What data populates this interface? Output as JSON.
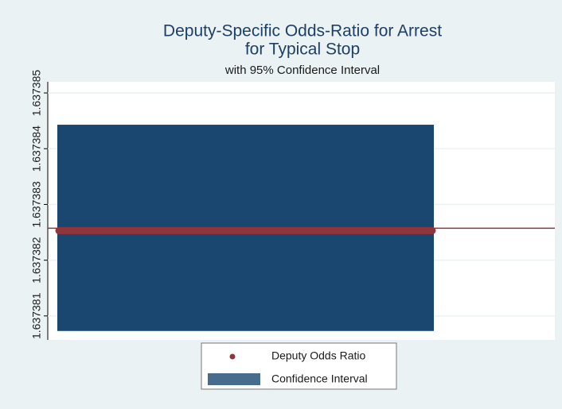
{
  "chart_data": {
    "type": "range",
    "title": "Deputy-Specific Odds-Ratio for Arrest",
    "title2": "for Typical Stop",
    "subtitle": "with 95% Confidence Interval",
    "ylim": [
      1.63738057,
      1.6373852
    ],
    "yticks": [
      1.637381,
      1.637382,
      1.637383,
      1.637384,
      1.637385
    ],
    "grid": true,
    "series": [
      {
        "name": "Deputy Odds Ratio",
        "color": "#90353b",
        "values": [
          1.63738253
        ]
      },
      {
        "name": "Confidence Interval",
        "color": "#1a476f",
        "low": [
          1.63738073
        ],
        "high": [
          1.63738443
        ]
      }
    ]
  }
}
